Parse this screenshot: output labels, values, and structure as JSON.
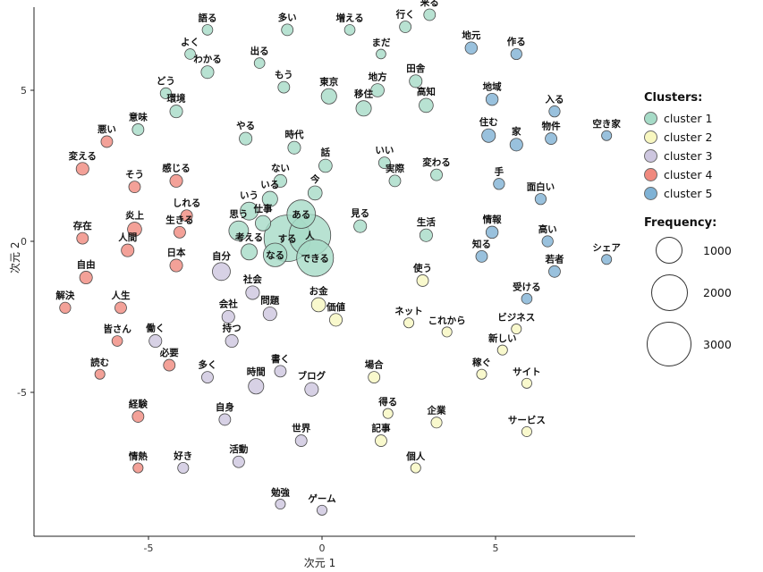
{
  "chart_data": {
    "type": "scatter",
    "title": "",
    "xlabel": "次元 1",
    "ylabel": "次元 2",
    "xlim": [
      -8.3,
      9.0
    ],
    "ylim": [
      -9.8,
      7.8
    ],
    "x_ticks": [
      -5,
      0,
      5
    ],
    "y_ticks": [
      5,
      0,
      -5
    ],
    "grid": false,
    "legend": {
      "position": "right",
      "clusters_title": "Clusters:",
      "clusters": [
        {
          "label": "cluster 1",
          "color": "#a6dbc7"
        },
        {
          "label": "cluster 2",
          "color": "#f8f7c0"
        },
        {
          "label": "cluster 3",
          "color": "#cdc6df"
        },
        {
          "label": "cluster 4",
          "color": "#f0897e"
        },
        {
          "label": "cluster 5",
          "color": "#7fb2d5"
        }
      ],
      "frequency_title": "Frequency:",
      "frequency_sizes": [
        1000,
        2000,
        3000
      ]
    },
    "points": [
      {
        "label": "語る",
        "x": -3.3,
        "y": 7.0,
        "cluster": 1,
        "freq": 180
      },
      {
        "label": "多い",
        "x": -1.0,
        "y": 7.0,
        "cluster": 1,
        "freq": 220
      },
      {
        "label": "増える",
        "x": 0.8,
        "y": 7.0,
        "cluster": 1,
        "freq": 180
      },
      {
        "label": "行く",
        "x": 2.4,
        "y": 7.1,
        "cluster": 1,
        "freq": 220
      },
      {
        "label": "来る",
        "x": 3.1,
        "y": 7.5,
        "cluster": 1,
        "freq": 220
      },
      {
        "label": "よく",
        "x": -3.8,
        "y": 6.2,
        "cluster": 1,
        "freq": 180
      },
      {
        "label": "わかる",
        "x": -3.3,
        "y": 5.6,
        "cluster": 1,
        "freq": 260
      },
      {
        "label": "出る",
        "x": -1.8,
        "y": 5.9,
        "cluster": 1,
        "freq": 180
      },
      {
        "label": "まだ",
        "x": 1.7,
        "y": 6.2,
        "cluster": 1,
        "freq": 150
      },
      {
        "label": "地元",
        "x": 4.3,
        "y": 6.4,
        "cluster": 5,
        "freq": 240
      },
      {
        "label": "作る",
        "x": 5.6,
        "y": 6.2,
        "cluster": 5,
        "freq": 200
      },
      {
        "label": "どう",
        "x": -4.5,
        "y": 4.9,
        "cluster": 1,
        "freq": 200
      },
      {
        "label": "環境",
        "x": -4.2,
        "y": 4.3,
        "cluster": 1,
        "freq": 260
      },
      {
        "label": "もう",
        "x": -1.1,
        "y": 5.1,
        "cluster": 1,
        "freq": 220
      },
      {
        "label": "東京",
        "x": 0.2,
        "y": 4.8,
        "cluster": 1,
        "freq": 380
      },
      {
        "label": "地方",
        "x": 1.6,
        "y": 5.0,
        "cluster": 1,
        "freq": 280
      },
      {
        "label": "移住",
        "x": 1.2,
        "y": 4.4,
        "cluster": 1,
        "freq": 380
      },
      {
        "label": "田舎",
        "x": 2.7,
        "y": 5.3,
        "cluster": 1,
        "freq": 260
      },
      {
        "label": "高知",
        "x": 3.0,
        "y": 4.5,
        "cluster": 1,
        "freq": 320
      },
      {
        "label": "地域",
        "x": 4.9,
        "y": 4.7,
        "cluster": 5,
        "freq": 240
      },
      {
        "label": "入る",
        "x": 6.7,
        "y": 4.3,
        "cluster": 5,
        "freq": 200
      },
      {
        "label": "意味",
        "x": -5.3,
        "y": 3.7,
        "cluster": 1,
        "freq": 220
      },
      {
        "label": "悪い",
        "x": -6.2,
        "y": 3.3,
        "cluster": 4,
        "freq": 220
      },
      {
        "label": "やる",
        "x": -2.2,
        "y": 3.4,
        "cluster": 1,
        "freq": 260
      },
      {
        "label": "時代",
        "x": -0.8,
        "y": 3.1,
        "cluster": 1,
        "freq": 260
      },
      {
        "label": "住む",
        "x": 4.8,
        "y": 3.5,
        "cluster": 5,
        "freq": 300
      },
      {
        "label": "家",
        "x": 5.6,
        "y": 3.2,
        "cluster": 5,
        "freq": 260
      },
      {
        "label": "物件",
        "x": 6.6,
        "y": 3.4,
        "cluster": 5,
        "freq": 220
      },
      {
        "label": "空き家",
        "x": 8.2,
        "y": 3.5,
        "cluster": 5,
        "freq": 160
      },
      {
        "label": "変える",
        "x": -6.9,
        "y": 2.4,
        "cluster": 4,
        "freq": 260
      },
      {
        "label": "話",
        "x": 0.1,
        "y": 2.5,
        "cluster": 1,
        "freq": 280
      },
      {
        "label": "いい",
        "x": 1.8,
        "y": 2.6,
        "cluster": 1,
        "freq": 220
      },
      {
        "label": "実際",
        "x": 2.1,
        "y": 2.0,
        "cluster": 1,
        "freq": 220
      },
      {
        "label": "変わる",
        "x": 3.3,
        "y": 2.2,
        "cluster": 1,
        "freq": 220
      },
      {
        "label": "そう",
        "x": -5.4,
        "y": 1.8,
        "cluster": 4,
        "freq": 220
      },
      {
        "label": "感じる",
        "x": -4.2,
        "y": 2.0,
        "cluster": 4,
        "freq": 260
      },
      {
        "label": "ない",
        "x": -1.2,
        "y": 2.0,
        "cluster": 1,
        "freq": 260
      },
      {
        "label": "いる",
        "x": -1.5,
        "y": 1.4,
        "cluster": 1,
        "freq": 380
      },
      {
        "label": "今",
        "x": -0.2,
        "y": 1.6,
        "cluster": 1,
        "freq": 320
      },
      {
        "label": "手",
        "x": 5.1,
        "y": 1.9,
        "cluster": 5,
        "freq": 200
      },
      {
        "label": "面白い",
        "x": 6.3,
        "y": 1.4,
        "cluster": 5,
        "freq": 200
      },
      {
        "label": "しれる",
        "x": -3.9,
        "y": 0.85,
        "cluster": 4,
        "freq": 220
      },
      {
        "label": "いう",
        "x": -2.1,
        "y": 1.0,
        "cluster": 1,
        "freq": 520
      },
      {
        "label": "ある",
        "x": -0.6,
        "y": 0.9,
        "cluster": 1,
        "freq": 1300
      },
      {
        "label": "見る",
        "x": 1.1,
        "y": 0.5,
        "cluster": 1,
        "freq": 260
      },
      {
        "label": "炎上",
        "x": -5.4,
        "y": 0.4,
        "cluster": 4,
        "freq": 320
      },
      {
        "label": "存在",
        "x": -6.9,
        "y": 0.1,
        "cluster": 4,
        "freq": 220
      },
      {
        "label": "生きる",
        "x": -4.1,
        "y": 0.3,
        "cluster": 4,
        "freq": 220
      },
      {
        "label": "仕事",
        "x": -1.7,
        "y": 0.6,
        "cluster": 1,
        "freq": 380
      },
      {
        "label": "する",
        "x": -1.0,
        "y": 0.1,
        "cluster": 1,
        "freq": 3500
      },
      {
        "label": "人",
        "x": -0.35,
        "y": 0.2,
        "cluster": 1,
        "freq": 2800
      },
      {
        "label": "思う",
        "x": -2.4,
        "y": 0.35,
        "cluster": 1,
        "freq": 620
      },
      {
        "label": "生活",
        "x": 3.0,
        "y": 0.2,
        "cluster": 1,
        "freq": 260
      },
      {
        "label": "情報",
        "x": 4.9,
        "y": 0.3,
        "cluster": 5,
        "freq": 240
      },
      {
        "label": "高い",
        "x": 6.5,
        "y": 0.0,
        "cluster": 5,
        "freq": 200
      },
      {
        "label": "人間",
        "x": -5.6,
        "y": -0.3,
        "cluster": 4,
        "freq": 260
      },
      {
        "label": "日本",
        "x": -4.2,
        "y": -0.8,
        "cluster": 4,
        "freq": 260
      },
      {
        "label": "考える",
        "x": -2.1,
        "y": -0.35,
        "cluster": 1,
        "freq": 420
      },
      {
        "label": "なる",
        "x": -1.35,
        "y": -0.45,
        "cluster": 1,
        "freq": 900
      },
      {
        "label": "できる",
        "x": -0.2,
        "y": -0.55,
        "cluster": 1,
        "freq": 2200
      },
      {
        "label": "知る",
        "x": 4.6,
        "y": -0.5,
        "cluster": 5,
        "freq": 220
      },
      {
        "label": "若者",
        "x": 6.7,
        "y": -1.0,
        "cluster": 5,
        "freq": 220
      },
      {
        "label": "シェア",
        "x": 8.2,
        "y": -0.6,
        "cluster": 5,
        "freq": 160
      },
      {
        "label": "自由",
        "x": -6.8,
        "y": -1.2,
        "cluster": 4,
        "freq": 260
      },
      {
        "label": "自分",
        "x": -2.9,
        "y": -1.0,
        "cluster": 3,
        "freq": 520
      },
      {
        "label": "使う",
        "x": 2.9,
        "y": -1.3,
        "cluster": 2,
        "freq": 220
      },
      {
        "label": "社会",
        "x": -2.0,
        "y": -1.7,
        "cluster": 3,
        "freq": 300
      },
      {
        "label": "受ける",
        "x": 5.9,
        "y": -1.9,
        "cluster": 5,
        "freq": 180
      },
      {
        "label": "解決",
        "x": -7.4,
        "y": -2.2,
        "cluster": 4,
        "freq": 200
      },
      {
        "label": "人生",
        "x": -5.8,
        "y": -2.2,
        "cluster": 4,
        "freq": 220
      },
      {
        "label": "会社",
        "x": -2.7,
        "y": -2.5,
        "cluster": 3,
        "freq": 260
      },
      {
        "label": "問題",
        "x": -1.5,
        "y": -2.4,
        "cluster": 3,
        "freq": 300
      },
      {
        "label": "お金",
        "x": -0.1,
        "y": -2.1,
        "cluster": 2,
        "freq": 320
      },
      {
        "label": "価値",
        "x": 0.4,
        "y": -2.6,
        "cluster": 2,
        "freq": 260
      },
      {
        "label": "ネット",
        "x": 2.5,
        "y": -2.7,
        "cluster": 2,
        "freq": 160
      },
      {
        "label": "これから",
        "x": 3.6,
        "y": -3.0,
        "cluster": 2,
        "freq": 160
      },
      {
        "label": "ビジネス",
        "x": 5.6,
        "y": -2.9,
        "cluster": 2,
        "freq": 160
      },
      {
        "label": "皆さん",
        "x": -5.9,
        "y": -3.3,
        "cluster": 4,
        "freq": 180
      },
      {
        "label": "働く",
        "x": -4.8,
        "y": -3.3,
        "cluster": 3,
        "freq": 260
      },
      {
        "label": "持つ",
        "x": -2.6,
        "y": -3.3,
        "cluster": 3,
        "freq": 260
      },
      {
        "label": "新しい",
        "x": 5.2,
        "y": -3.6,
        "cluster": 2,
        "freq": 160
      },
      {
        "label": "読む",
        "x": -6.4,
        "y": -4.4,
        "cluster": 4,
        "freq": 160
      },
      {
        "label": "必要",
        "x": -4.4,
        "y": -4.1,
        "cluster": 4,
        "freq": 220
      },
      {
        "label": "多く",
        "x": -3.3,
        "y": -4.5,
        "cluster": 3,
        "freq": 220
      },
      {
        "label": "書く",
        "x": -1.2,
        "y": -4.3,
        "cluster": 3,
        "freq": 220
      },
      {
        "label": "時間",
        "x": -1.9,
        "y": -4.8,
        "cluster": 3,
        "freq": 380
      },
      {
        "label": "ブログ",
        "x": -0.3,
        "y": -4.9,
        "cluster": 3,
        "freq": 300
      },
      {
        "label": "場合",
        "x": 1.5,
        "y": -4.5,
        "cluster": 2,
        "freq": 220
      },
      {
        "label": "稼ぐ",
        "x": 4.6,
        "y": -4.4,
        "cluster": 2,
        "freq": 160
      },
      {
        "label": "サイト",
        "x": 5.9,
        "y": -4.7,
        "cluster": 2,
        "freq": 160
      },
      {
        "label": "経験",
        "x": -5.3,
        "y": -5.8,
        "cluster": 4,
        "freq": 220
      },
      {
        "label": "自身",
        "x": -2.8,
        "y": -5.9,
        "cluster": 3,
        "freq": 220
      },
      {
        "label": "得る",
        "x": 1.9,
        "y": -5.7,
        "cluster": 2,
        "freq": 160
      },
      {
        "label": "企業",
        "x": 3.3,
        "y": -6.0,
        "cluster": 2,
        "freq": 190
      },
      {
        "label": "サービス",
        "x": 5.9,
        "y": -6.3,
        "cluster": 2,
        "freq": 160
      },
      {
        "label": "世界",
        "x": -0.6,
        "y": -6.6,
        "cluster": 3,
        "freq": 220
      },
      {
        "label": "記事",
        "x": 1.7,
        "y": -6.6,
        "cluster": 2,
        "freq": 220
      },
      {
        "label": "情熱",
        "x": -5.3,
        "y": -7.5,
        "cluster": 4,
        "freq": 160
      },
      {
        "label": "好き",
        "x": -4.0,
        "y": -7.5,
        "cluster": 3,
        "freq": 190
      },
      {
        "label": "活動",
        "x": -2.4,
        "y": -7.3,
        "cluster": 3,
        "freq": 220
      },
      {
        "label": "個人",
        "x": 2.7,
        "y": -7.5,
        "cluster": 2,
        "freq": 160
      },
      {
        "label": "勉強",
        "x": -1.2,
        "y": -8.7,
        "cluster": 3,
        "freq": 160
      },
      {
        "label": "ゲーム",
        "x": 0.0,
        "y": -8.9,
        "cluster": 3,
        "freq": 160
      }
    ]
  }
}
